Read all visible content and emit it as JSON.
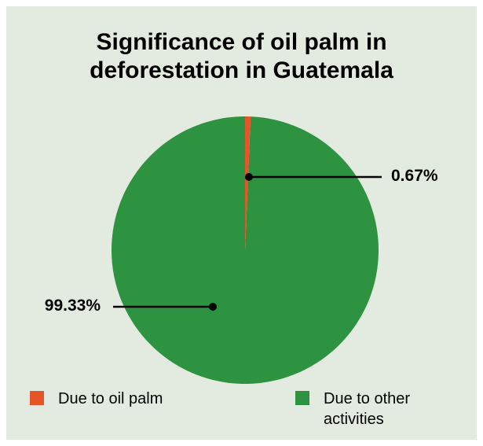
{
  "chart_data": {
    "type": "pie",
    "title_lines": [
      "Significance of oil palm in",
      "deforestation in Guatemala"
    ],
    "slices": [
      {
        "label": "Due to oil palm",
        "value": 0.67,
        "value_label": "0.67%",
        "color": "#e55527"
      },
      {
        "label": "Due to other activities",
        "value": 99.33,
        "value_label": "99.33%",
        "color": "#2e9340"
      }
    ],
    "legend_placement": "bottom"
  },
  "colors": {
    "background": "#e3ebe0",
    "leader_line": "#000000"
  }
}
